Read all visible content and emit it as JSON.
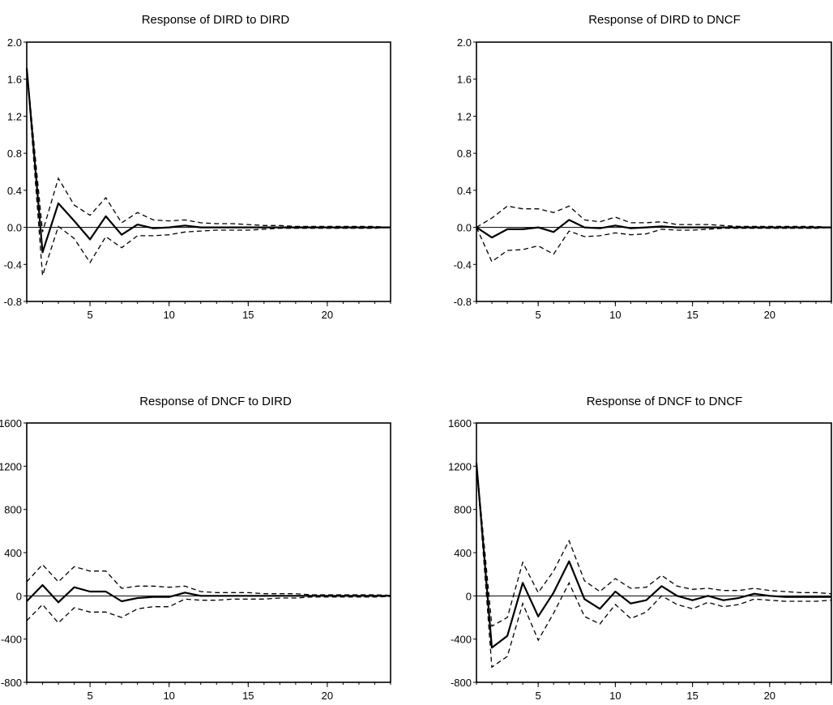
{
  "chart_data": [
    {
      "type": "line",
      "title": "Response of DIRD to DIRD",
      "xlim": [
        1,
        24
      ],
      "ylim": [
        -0.8,
        2.0
      ],
      "xticks": [
        5,
        10,
        15,
        20
      ],
      "yticks": [
        -0.8,
        -0.4,
        0.0,
        0.4,
        0.8,
        1.2,
        1.6,
        2.0
      ],
      "ytick_labels": [
        "-0.8",
        "-0.4",
        "0.0",
        "0.4",
        "0.8",
        "1.2",
        "1.6",
        "2.0"
      ],
      "x": [
        1,
        2,
        3,
        4,
        5,
        6,
        7,
        8,
        9,
        10,
        11,
        12,
        13,
        14,
        15,
        16,
        17,
        18,
        19,
        20,
        21,
        22,
        23,
        24
      ],
      "series": [
        {
          "role": "response",
          "values": [
            1.72,
            -0.27,
            0.26,
            0.07,
            -0.13,
            0.12,
            -0.08,
            0.03,
            -0.01,
            0.0,
            0.02,
            0.0,
            0.0,
            0.0,
            0.0,
            0.0,
            0.0,
            0.0,
            0.0,
            0.0,
            0.0,
            0.0,
            0.0,
            0.0
          ]
        },
        {
          "role": "upper",
          "values": [
            1.72,
            -0.05,
            0.53,
            0.24,
            0.13,
            0.32,
            0.05,
            0.16,
            0.08,
            0.07,
            0.08,
            0.05,
            0.04,
            0.04,
            0.03,
            0.02,
            0.02,
            0.01,
            0.01,
            0.01,
            0.01,
            0.01,
            0.01,
            0.0
          ]
        },
        {
          "role": "lower",
          "values": [
            1.72,
            -0.52,
            0.01,
            -0.12,
            -0.38,
            -0.1,
            -0.22,
            -0.09,
            -0.09,
            -0.08,
            -0.05,
            -0.04,
            -0.03,
            -0.03,
            -0.03,
            -0.02,
            -0.01,
            -0.01,
            -0.01,
            -0.01,
            -0.01,
            -0.01,
            -0.01,
            0.0
          ]
        }
      ]
    },
    {
      "type": "line",
      "title": "Response of DIRD to DNCF",
      "xlim": [
        1,
        24
      ],
      "ylim": [
        -0.8,
        2.0
      ],
      "xticks": [
        5,
        10,
        15,
        20
      ],
      "yticks": [
        -0.8,
        -0.4,
        0.0,
        0.4,
        0.8,
        1.2,
        1.6,
        2.0
      ],
      "ytick_labels": [
        "-0.8",
        "-0.4",
        "0.0",
        "0.4",
        "0.8",
        "1.2",
        "1.6",
        "2.0"
      ],
      "x": [
        1,
        2,
        3,
        4,
        5,
        6,
        7,
        8,
        9,
        10,
        11,
        12,
        13,
        14,
        15,
        16,
        17,
        18,
        19,
        20,
        21,
        22,
        23,
        24
      ],
      "series": [
        {
          "role": "response",
          "values": [
            0.0,
            -0.11,
            -0.02,
            -0.02,
            0.0,
            -0.05,
            0.08,
            0.0,
            -0.01,
            0.02,
            -0.01,
            0.0,
            0.01,
            0.0,
            0.0,
            0.0,
            0.0,
            0.0,
            0.0,
            0.0,
            0.0,
            0.0,
            0.0,
            0.0
          ]
        },
        {
          "role": "upper",
          "values": [
            0.0,
            0.1,
            0.23,
            0.2,
            0.2,
            0.16,
            0.23,
            0.08,
            0.06,
            0.11,
            0.05,
            0.05,
            0.06,
            0.03,
            0.03,
            0.03,
            0.02,
            0.01,
            0.01,
            0.01,
            0.01,
            0.01,
            0.01,
            0.0
          ]
        },
        {
          "role": "lower",
          "values": [
            0.0,
            -0.37,
            -0.25,
            -0.24,
            -0.2,
            -0.29,
            -0.04,
            -0.1,
            -0.09,
            -0.06,
            -0.08,
            -0.07,
            -0.02,
            -0.03,
            -0.03,
            -0.02,
            -0.01,
            -0.01,
            -0.01,
            -0.01,
            -0.01,
            -0.01,
            -0.01,
            0.0
          ]
        }
      ]
    },
    {
      "type": "line",
      "title": "Response of DNCF to DIRD",
      "xlim": [
        1,
        24
      ],
      "ylim": [
        -800,
        1600
      ],
      "xticks": [
        5,
        10,
        15,
        20
      ],
      "yticks": [
        -800,
        -400,
        0,
        400,
        800,
        1200,
        1600
      ],
      "ytick_labels": [
        "-800",
        "-400",
        "0",
        "400",
        "800",
        "1200",
        "1600"
      ],
      "x": [
        1,
        2,
        3,
        4,
        5,
        6,
        7,
        8,
        9,
        10,
        11,
        12,
        13,
        14,
        15,
        16,
        17,
        18,
        19,
        20,
        21,
        22,
        23,
        24
      ],
      "series": [
        {
          "role": "response",
          "values": [
            -50,
            100,
            -60,
            80,
            40,
            40,
            -50,
            -20,
            -10,
            -10,
            30,
            0,
            0,
            0,
            0,
            0,
            0,
            0,
            0,
            0,
            0,
            0,
            0,
            0
          ]
        },
        {
          "role": "upper",
          "values": [
            130,
            290,
            130,
            270,
            230,
            230,
            70,
            90,
            90,
            80,
            90,
            40,
            30,
            30,
            30,
            20,
            20,
            20,
            10,
            10,
            10,
            10,
            10,
            5
          ]
        },
        {
          "role": "lower",
          "values": [
            -230,
            -80,
            -250,
            -110,
            -150,
            -150,
            -200,
            -120,
            -100,
            -100,
            -30,
            -40,
            -40,
            -30,
            -30,
            -30,
            -20,
            -20,
            -10,
            -10,
            -10,
            -10,
            -10,
            -5
          ]
        }
      ]
    },
    {
      "type": "line",
      "title": "Response of DNCF to DNCF",
      "xlim": [
        1,
        24
      ],
      "ylim": [
        -800,
        1600
      ],
      "xticks": [
        5,
        10,
        15,
        20
      ],
      "yticks": [
        -800,
        -400,
        0,
        400,
        800,
        1200,
        1600
      ],
      "ytick_labels": [
        "-800",
        "-400",
        "0",
        "400",
        "800",
        "1200",
        "1600"
      ],
      "x": [
        1,
        2,
        3,
        4,
        5,
        6,
        7,
        8,
        9,
        10,
        11,
        12,
        13,
        14,
        15,
        16,
        17,
        18,
        19,
        20,
        21,
        22,
        23,
        24
      ],
      "series": [
        {
          "role": "response",
          "values": [
            1230,
            -480,
            -370,
            120,
            -190,
            30,
            320,
            -30,
            -120,
            40,
            -70,
            -40,
            90,
            0,
            -40,
            0,
            -40,
            -20,
            20,
            0,
            -10,
            -10,
            -10,
            -10
          ]
        },
        {
          "role": "upper",
          "values": [
            1230,
            -280,
            -200,
            310,
            30,
            230,
            510,
            140,
            40,
            160,
            70,
            80,
            190,
            90,
            60,
            70,
            50,
            50,
            70,
            50,
            40,
            30,
            30,
            20
          ]
        },
        {
          "role": "lower",
          "values": [
            1230,
            -660,
            -560,
            -70,
            -410,
            -160,
            120,
            -190,
            -260,
            -80,
            -210,
            -150,
            0,
            -80,
            -120,
            -60,
            -100,
            -80,
            -30,
            -40,
            -50,
            -50,
            -50,
            -40
          ]
        }
      ]
    }
  ]
}
